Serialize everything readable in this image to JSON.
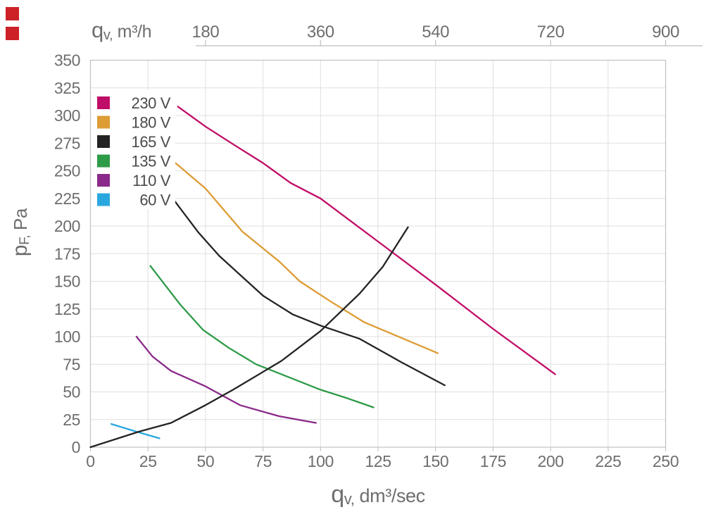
{
  "page": {
    "background": "#ffffff"
  },
  "corner_markers": {
    "color": "#cb2127",
    "items": [
      {
        "x": 8,
        "y": 10,
        "size": 19
      },
      {
        "x": 8,
        "y": 38,
        "size": 19
      }
    ]
  },
  "chart_data": {
    "type": "line",
    "title": "",
    "grid": true,
    "legend_position": "top-left-inside",
    "x_axis_bottom": {
      "title": {
        "lead": "q",
        "sub": "v,",
        "rest": " dm³/sec"
      },
      "min": 0,
      "max": 250,
      "tick_step": 25,
      "ticks": [
        0,
        25,
        50,
        75,
        100,
        125,
        150,
        175,
        200,
        225,
        250
      ]
    },
    "x_axis_top": {
      "title": {
        "lead": "q",
        "sub": "v,",
        "rest": " m³/h"
      },
      "ticks": [
        {
          "label": "180",
          "x": 50
        },
        {
          "label": "360",
          "x": 100
        },
        {
          "label": "540",
          "x": 150
        },
        {
          "label": "720",
          "x": 200
        },
        {
          "label": "900",
          "x": 250
        }
      ]
    },
    "y_axis": {
      "title": {
        "lead": "p",
        "sub": "F,",
        "rest": " Pa"
      },
      "min": 0,
      "max": 350,
      "tick_step": 25,
      "ticks": [
        0,
        25,
        50,
        75,
        100,
        125,
        150,
        175,
        200,
        225,
        250,
        275,
        300,
        325,
        350
      ]
    },
    "series": [
      {
        "name": "230 V",
        "color": "#c00d67",
        "legend": true,
        "points": [
          [
            38,
            308
          ],
          [
            50,
            290
          ],
          [
            62,
            274
          ],
          [
            75,
            257
          ],
          [
            87,
            239
          ],
          [
            100,
            225
          ],
          [
            125,
            186
          ],
          [
            150,
            147
          ],
          [
            175,
            107
          ],
          [
            202,
            66
          ]
        ]
      },
      {
        "name": "180 V",
        "color": "#dd9c35",
        "legend": true,
        "points": [
          [
            33,
            264
          ],
          [
            50,
            234
          ],
          [
            66,
            195
          ],
          [
            82,
            168
          ],
          [
            91,
            150
          ],
          [
            105,
            131
          ],
          [
            119,
            113
          ],
          [
            135,
            99
          ],
          [
            151,
            85
          ]
        ]
      },
      {
        "name": "165 V",
        "color": "#232323",
        "legend": true,
        "points": [
          [
            35,
            227
          ],
          [
            47,
            194
          ],
          [
            56,
            173
          ],
          [
            75,
            137
          ],
          [
            88,
            120
          ],
          [
            100,
            110
          ],
          [
            117,
            98
          ],
          [
            135,
            77
          ],
          [
            154,
            56
          ]
        ]
      },
      {
        "name": "135 V",
        "color": "#2e9b48",
        "legend": true,
        "points": [
          [
            26,
            164
          ],
          [
            39,
            129
          ],
          [
            49,
            106
          ],
          [
            60,
            90
          ],
          [
            72,
            75
          ],
          [
            83,
            66
          ],
          [
            100,
            52
          ],
          [
            112,
            44
          ],
          [
            123,
            36
          ]
        ]
      },
      {
        "name": "110 V",
        "color": "#8a2a8a",
        "legend": true,
        "points": [
          [
            20,
            100
          ],
          [
            27,
            82
          ],
          [
            35,
            69
          ],
          [
            50,
            55
          ],
          [
            65,
            38
          ],
          [
            82,
            28
          ],
          [
            98,
            22
          ]
        ]
      },
      {
        "name": "60 V",
        "color": "#2ba7df",
        "legend": true,
        "points": [
          [
            9,
            21
          ],
          [
            20,
            14
          ],
          [
            30,
            8
          ]
        ]
      },
      {
        "name": "system-curve",
        "color": "#232323",
        "legend": false,
        "points": [
          [
            0,
            0
          ],
          [
            21,
            14
          ],
          [
            35,
            22
          ],
          [
            50,
            38
          ],
          [
            62,
            52
          ],
          [
            83,
            78
          ],
          [
            100,
            105
          ],
          [
            117,
            139
          ],
          [
            127,
            163
          ],
          [
            138,
            199
          ]
        ]
      }
    ],
    "colors": {
      "grid": "#dfdfdf",
      "border": "#c6c6c6",
      "tick_text": "#6e6e6e",
      "axis_title": "#6e6e6e",
      "legend_text": "#4b4b4b",
      "top_axis_line": "#bdbdbd",
      "legend_bg": "#ffffff"
    }
  }
}
